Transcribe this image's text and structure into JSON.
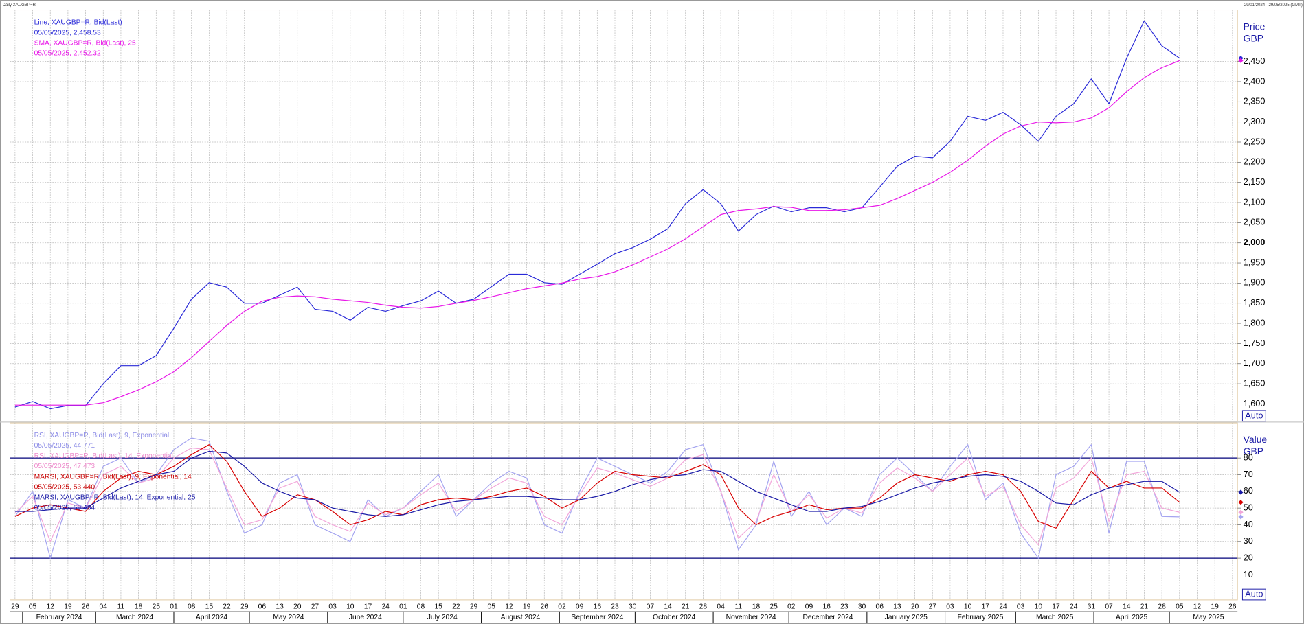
{
  "chart_data": {
    "type": "line",
    "title": "Daily XAUGBP=R",
    "date_range": "29/01/2024 - 29/05/2025 (GMT)",
    "x": [
      "2024-01-29",
      "2024-02-05",
      "2024-02-12",
      "2024-02-19",
      "2024-02-26",
      "2024-03-04",
      "2024-03-11",
      "2024-03-18",
      "2024-03-25",
      "2024-04-01",
      "2024-04-08",
      "2024-04-15",
      "2024-04-22",
      "2024-04-29",
      "2024-05-06",
      "2024-05-13",
      "2024-05-20",
      "2024-05-27",
      "2024-06-03",
      "2024-06-10",
      "2024-06-17",
      "2024-06-24",
      "2024-07-01",
      "2024-07-08",
      "2024-07-15",
      "2024-07-22",
      "2024-07-29",
      "2024-08-05",
      "2024-08-12",
      "2024-08-19",
      "2024-08-26",
      "2024-09-02",
      "2024-09-09",
      "2024-09-16",
      "2024-09-23",
      "2024-09-30",
      "2024-10-07",
      "2024-10-14",
      "2024-10-21",
      "2024-10-28",
      "2024-11-04",
      "2024-11-11",
      "2024-11-18",
      "2024-11-25",
      "2024-12-02",
      "2024-12-09",
      "2024-12-16",
      "2024-12-23",
      "2024-12-30",
      "2025-01-06",
      "2025-01-13",
      "2025-01-20",
      "2025-01-27",
      "2025-02-03",
      "2025-02-10",
      "2025-02-17",
      "2025-02-24",
      "2025-03-03",
      "2025-03-10",
      "2025-03-17",
      "2025-03-24",
      "2025-03-31",
      "2025-04-07",
      "2025-04-14",
      "2025-04-21",
      "2025-04-28",
      "2025-05-05"
    ],
    "xlim": [
      "2024-01-27",
      "2025-05-28"
    ],
    "xticks": [
      {
        "value": "2024-01-29",
        "label": "29"
      },
      {
        "value": "2024-02-05",
        "label": "05"
      },
      {
        "value": "2024-02-12",
        "label": "12"
      },
      {
        "value": "2024-02-19",
        "label": "19"
      },
      {
        "value": "2024-02-26",
        "label": "26"
      },
      {
        "value": "2024-03-04",
        "label": "04"
      },
      {
        "value": "2024-03-11",
        "label": "11"
      },
      {
        "value": "2024-03-18",
        "label": "18"
      },
      {
        "value": "2024-03-25",
        "label": "25"
      },
      {
        "value": "2024-04-01",
        "label": "01"
      },
      {
        "value": "2024-04-08",
        "label": "08"
      },
      {
        "value": "2024-04-15",
        "label": "15"
      },
      {
        "value": "2024-04-22",
        "label": "22"
      },
      {
        "value": "2024-04-29",
        "label": "29"
      },
      {
        "value": "2024-05-06",
        "label": "06"
      },
      {
        "value": "2024-05-13",
        "label": "13"
      },
      {
        "value": "2024-05-20",
        "label": "20"
      },
      {
        "value": "2024-05-27",
        "label": "27"
      },
      {
        "value": "2024-06-03",
        "label": "03"
      },
      {
        "value": "2024-06-10",
        "label": "10"
      },
      {
        "value": "2024-06-17",
        "label": "17"
      },
      {
        "value": "2024-06-24",
        "label": "24"
      },
      {
        "value": "2024-07-01",
        "label": "01"
      },
      {
        "value": "2024-07-08",
        "label": "08"
      },
      {
        "value": "2024-07-15",
        "label": "15"
      },
      {
        "value": "2024-07-22",
        "label": "22"
      },
      {
        "value": "2024-07-29",
        "label": "29"
      },
      {
        "value": "2024-08-05",
        "label": "05"
      },
      {
        "value": "2024-08-12",
        "label": "12"
      },
      {
        "value": "2024-08-19",
        "label": "19"
      },
      {
        "value": "2024-08-26",
        "label": "26"
      },
      {
        "value": "2024-09-02",
        "label": "02"
      },
      {
        "value": "2024-09-09",
        "label": "09"
      },
      {
        "value": "2024-09-16",
        "label": "16"
      },
      {
        "value": "2024-09-23",
        "label": "23"
      },
      {
        "value": "2024-09-30",
        "label": "30"
      },
      {
        "value": "2024-10-07",
        "label": "07"
      },
      {
        "value": "2024-10-14",
        "label": "14"
      },
      {
        "value": "2024-10-21",
        "label": "21"
      },
      {
        "value": "2024-10-28",
        "label": "28"
      },
      {
        "value": "2024-11-04",
        "label": "04"
      },
      {
        "value": "2024-11-11",
        "label": "11"
      },
      {
        "value": "2024-11-18",
        "label": "18"
      },
      {
        "value": "2024-11-25",
        "label": "25"
      },
      {
        "value": "2024-12-02",
        "label": "02"
      },
      {
        "value": "2024-12-09",
        "label": "09"
      },
      {
        "value": "2024-12-16",
        "label": "16"
      },
      {
        "value": "2024-12-23",
        "label": "23"
      },
      {
        "value": "2024-12-30",
        "label": "30"
      },
      {
        "value": "2025-01-06",
        "label": "06"
      },
      {
        "value": "2025-01-13",
        "label": "13"
      },
      {
        "value": "2025-01-20",
        "label": "20"
      },
      {
        "value": "2025-01-27",
        "label": "27"
      },
      {
        "value": "2025-02-03",
        "label": "03"
      },
      {
        "value": "2025-02-10",
        "label": "10"
      },
      {
        "value": "2025-02-17",
        "label": "17"
      },
      {
        "value": "2025-02-24",
        "label": "24"
      },
      {
        "value": "2025-03-03",
        "label": "03"
      },
      {
        "value": "2025-03-10",
        "label": "10"
      },
      {
        "value": "2025-03-17",
        "label": "17"
      },
      {
        "value": "2025-03-24",
        "label": "24"
      },
      {
        "value": "2025-03-31",
        "label": "31"
      },
      {
        "value": "2025-04-07",
        "label": "07"
      },
      {
        "value": "2025-04-14",
        "label": "14"
      },
      {
        "value": "2025-04-21",
        "label": "21"
      },
      {
        "value": "2025-04-28",
        "label": "28"
      },
      {
        "value": "2025-05-05",
        "label": "05"
      },
      {
        "value": "2025-05-12",
        "label": "12"
      },
      {
        "value": "2025-05-19",
        "label": "19"
      },
      {
        "value": "2025-05-26",
        "label": "26"
      }
    ],
    "months": [
      {
        "value": "2024-02-01",
        "label": "February 2024"
      },
      {
        "value": "2024-03-01",
        "label": "March 2024"
      },
      {
        "value": "2024-04-01",
        "label": "April 2024"
      },
      {
        "value": "2024-05-01",
        "label": "May 2024"
      },
      {
        "value": "2024-06-01",
        "label": "June 2024"
      },
      {
        "value": "2024-07-01",
        "label": "July 2024"
      },
      {
        "value": "2024-08-01",
        "label": "August 2024"
      },
      {
        "value": "2024-09-01",
        "label": "September 2024"
      },
      {
        "value": "2024-10-01",
        "label": "October 2024"
      },
      {
        "value": "2024-11-01",
        "label": "November 2024"
      },
      {
        "value": "2024-12-01",
        "label": "December 2024"
      },
      {
        "value": "2025-01-01",
        "label": "January 2025"
      },
      {
        "value": "2025-02-01",
        "label": "February 2025"
      },
      {
        "value": "2025-03-01",
        "label": "March 2025"
      },
      {
        "value": "2025-04-01",
        "label": "April 2025"
      },
      {
        "value": "2025-05-01",
        "label": "May 2025"
      }
    ],
    "panels": [
      {
        "axis_label": "Price",
        "unit": "GBP",
        "scale_button": "Auto",
        "grid": true,
        "bold_tick": 2000,
        "ylim": [
          1557,
          2578
        ],
        "yticks": [
          {
            "value": 1600,
            "label": "1,600"
          },
          {
            "value": 1650,
            "label": "1,650"
          },
          {
            "value": 1700,
            "label": "1,700"
          },
          {
            "value": 1750,
            "label": "1,750"
          },
          {
            "value": 1800,
            "label": "1,800"
          },
          {
            "value": 1850,
            "label": "1,850"
          },
          {
            "value": 1900,
            "label": "1,900"
          },
          {
            "value": 1950,
            "label": "1,950"
          },
          {
            "value": 2000,
            "label": "2,000"
          },
          {
            "value": 2050,
            "label": "2,050"
          },
          {
            "value": 2100,
            "label": "2,100"
          },
          {
            "value": 2150,
            "label": "2,150"
          },
          {
            "value": 2200,
            "label": "2,200"
          },
          {
            "value": 2250,
            "label": "2,250"
          },
          {
            "value": 2300,
            "label": "2,300"
          },
          {
            "value": 2350,
            "label": "2,350"
          },
          {
            "value": 2400,
            "label": "2,400"
          },
          {
            "value": 2450,
            "label": "2,450"
          }
        ],
        "levels": [],
        "series": [
          {
            "name": "Line, XAUGBP=R, Bid(Last)",
            "last_label": "05/05/2025, 2,458.53",
            "color": "#2a2ad8",
            "legend_color": "#2a2ad8",
            "values": [
              1592,
              1606,
              1588,
              1596,
              1596,
              1650,
              1695,
              1695,
              1720,
              1788,
              1860,
              1901,
              1890,
              1850,
              1850,
              1870,
              1890,
              1835,
              1830,
              1808,
              1840,
              1830,
              1844,
              1856,
              1880,
              1850,
              1860,
              1891,
              1922,
              1922,
              1901,
              1897,
              1922,
              1947,
              1973,
              1988,
              2009,
              2035,
              2097,
              2132,
              2097,
              2029,
              2070,
              2091,
              2077,
              2087,
              2087,
              2077,
              2087,
              2138,
              2190,
              2215,
              2211,
              2252,
              2314,
              2304,
              2324,
              2293,
              2252,
              2314,
              2345,
              2407,
              2345,
              2458,
              2551,
              2489,
              2458.53
            ]
          },
          {
            "name": "SMA, XAUGBP=R, Bid(Last),  25",
            "last_label": "05/05/2025, 2,452.32",
            "color": "#e818e8",
            "legend_color": "#e818e8",
            "values": [
              1597,
              1597,
              1597,
              1597,
              1597,
              1603,
              1618,
              1635,
              1655,
              1680,
              1715,
              1755,
              1795,
              1830,
              1855,
              1865,
              1868,
              1866,
              1860,
              1856,
              1852,
              1845,
              1840,
              1838,
              1842,
              1850,
              1857,
              1866,
              1876,
              1886,
              1893,
              1900,
              1910,
              1916,
              1928,
              1945,
              1965,
              1985,
              2010,
              2040,
              2070,
              2080,
              2084,
              2090,
              2088,
              2080,
              2080,
              2082,
              2087,
              2093,
              2110,
              2130,
              2150,
              2175,
              2205,
              2240,
              2270,
              2290,
              2300,
              2298,
              2300,
              2310,
              2335,
              2375,
              2410,
              2435,
              2452.32
            ]
          }
        ]
      },
      {
        "axis_label": "Value",
        "unit": "GBP",
        "scale_button": "Auto",
        "grid": true,
        "ylim": [
          -5,
          101
        ],
        "yticks": [
          10,
          20,
          30,
          40,
          50,
          60,
          70,
          80
        ],
        "levels": [
          80,
          20
        ],
        "level_color": "#00007a",
        "series": [
          {
            "name": "RSI, XAUGBP=R, Bid(Last),  9, Exponential",
            "last_label": "05/05/2025, 44.771",
            "color": "#a4a4f0",
            "legend_color": "#8c8ce6",
            "values": [
              45,
              60,
              20,
              55,
              50,
              75,
              80,
              65,
              70,
              85,
              92,
              90,
              60,
              35,
              40,
              65,
              70,
              40,
              35,
              30,
              55,
              45,
              50,
              60,
              70,
              45,
              55,
              65,
              72,
              68,
              40,
              35,
              60,
              80,
              75,
              70,
              65,
              72,
              85,
              88,
              60,
              25,
              40,
              78,
              45,
              60,
              40,
              50,
              45,
              70,
              80,
              70,
              60,
              75,
              88,
              55,
              65,
              35,
              20,
              70,
              75,
              88,
              35,
              78,
              78,
              45,
              44.771
            ]
          },
          {
            "name": "RSI, XAUGBP=R, Bid(Last),  14, Exponential",
            "last_label": "05/05/2025, 47.473",
            "color": "#f2a6da",
            "legend_color": "#ee8ccc",
            "values": [
              47,
              57,
              30,
              53,
              50,
              70,
              75,
              65,
              68,
              80,
              86,
              85,
              62,
              40,
              43,
              62,
              66,
              45,
              40,
              36,
              53,
              46,
              50,
              58,
              65,
              48,
              55,
              62,
              68,
              65,
              45,
              40,
              58,
              74,
              71,
              67,
              63,
              68,
              79,
              82,
              60,
              32,
              42,
              70,
              48,
              58,
              44,
              50,
              47,
              65,
              74,
              68,
              60,
              70,
              80,
              57,
              63,
              40,
              28,
              62,
              68,
              80,
              42,
              70,
              72,
              50,
              47.473
            ]
          },
          {
            "name": "MARSI, XAUGBP=R, Bid(Last),  9, Exponential, 14",
            "last_label": "05/05/2025, 53.440",
            "color": "#d80000",
            "legend_color": "#c80000",
            "values": [
              45,
              50,
              52,
              50,
              48,
              60,
              68,
              72,
              70,
              75,
              82,
              88,
              78,
              60,
              45,
              50,
              58,
              55,
              48,
              40,
              43,
              48,
              46,
              52,
              55,
              56,
              55,
              57,
              60,
              62,
              57,
              50,
              55,
              65,
              72,
              70,
              69,
              68,
              72,
              76,
              70,
              50,
              40,
              45,
              48,
              52,
              49,
              50,
              50,
              56,
              65,
              70,
              68,
              66,
              70,
              72,
              70,
              60,
              42,
              38,
              55,
              72,
              62,
              66,
              62,
              62,
              53.44
            ]
          },
          {
            "name": "MARSI, XAUGBP=R, Bid(Last),  14, Exponential, 25",
            "last_label": "05/05/2025, 59.484",
            "color": "#1a1aa6",
            "legend_color": "#1a1aa6",
            "values": [
              48,
              48,
              49,
              50,
              50,
              56,
              62,
              66,
              70,
              72,
              80,
              84,
              83,
              75,
              65,
              60,
              56,
              55,
              50,
              48,
              46,
              45,
              46,
              49,
              52,
              54,
              55,
              56,
              57,
              57,
              56,
              55,
              55,
              57,
              60,
              64,
              67,
              69,
              70,
              73,
              72,
              66,
              60,
              56,
              52,
              48,
              48,
              50,
              51,
              54,
              58,
              62,
              65,
              67,
              69,
              70,
              69,
              66,
              60,
              53,
              52,
              58,
              62,
              64,
              66,
              66,
              59.484
            ]
          }
        ]
      }
    ]
  }
}
